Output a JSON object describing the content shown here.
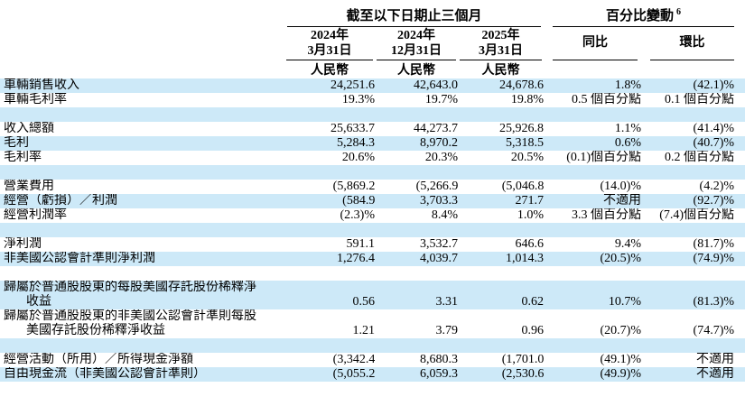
{
  "meta": {
    "colors": {
      "row_highlight": "#cde9f8",
      "rule_line": "#000000",
      "text": "#000000",
      "background": "#ffffff"
    }
  },
  "header": {
    "period_group": "截至以下日期止三個月",
    "change_group": "百分比變動",
    "change_group_superscript": "6",
    "date_columns": [
      {
        "year": "2024年",
        "date": "3月31日",
        "currency": "人民幣"
      },
      {
        "year": "2024年",
        "date": "12月31日",
        "currency": "人民幣"
      },
      {
        "year": "2025年",
        "date": "3月31日",
        "currency": "人民幣"
      }
    ],
    "change_columns": [
      {
        "label": "同比"
      },
      {
        "label": "環比"
      }
    ]
  },
  "rows": [
    {
      "type": "data",
      "shade": "blue",
      "label": "車輛銷售收入",
      "values": [
        "24,251.6",
        "42,643.0",
        "24,678.6",
        "1.8%",
        "(42.1)%"
      ]
    },
    {
      "type": "data",
      "shade": "white",
      "label": "車輛毛利率",
      "values": [
        "19.3%",
        "19.7%",
        "19.8%",
        "0.5 個百分點",
        "0.1 個百分點"
      ]
    },
    {
      "type": "spacer",
      "shade": "blue"
    },
    {
      "type": "data",
      "shade": "white",
      "label": "收入總額",
      "values": [
        "25,633.7",
        "44,273.7",
        "25,926.8",
        "1.1%",
        "(41.4)%"
      ]
    },
    {
      "type": "data",
      "shade": "blue",
      "label": "毛利",
      "values": [
        "5,284.3",
        "8,970.2",
        "5,318.5",
        "0.6%",
        "(40.7)%"
      ]
    },
    {
      "type": "data",
      "shade": "white",
      "label": "毛利率",
      "values": [
        "20.6%",
        "20.3%",
        "20.5%",
        "(0.1)個百分點",
        "0.2 個百分點"
      ]
    },
    {
      "type": "spacer",
      "shade": "blue"
    },
    {
      "type": "data",
      "shade": "white",
      "label": "營業費用",
      "values": [
        "(5,869.2)",
        "(5,266.9)",
        "(5,046.8)",
        "(14.0)%",
        "(4.2)%"
      ]
    },
    {
      "type": "data",
      "shade": "blue",
      "label": "經營（虧損）／利潤",
      "values": [
        "(584.9)",
        "3,703.3",
        "271.7",
        "不適用",
        "(92.7)%"
      ]
    },
    {
      "type": "data",
      "shade": "white",
      "label": "經營利潤率",
      "values": [
        "(2.3)%",
        "8.4%",
        "1.0%",
        "3.3 個百分點",
        "(7.4)個百分點"
      ]
    },
    {
      "type": "spacer",
      "shade": "blue"
    },
    {
      "type": "data",
      "shade": "white",
      "label": "淨利潤",
      "values": [
        "591.1",
        "3,532.7",
        "646.6",
        "9.4%",
        "(81.7)%"
      ]
    },
    {
      "type": "data",
      "shade": "blue",
      "label": "非美國公認會計準則淨利潤",
      "values": [
        "1,276.4",
        "4,039.7",
        "1,014.3",
        "(20.5)%",
        "(74.9)%"
      ]
    },
    {
      "type": "spacer",
      "shade": "white"
    },
    {
      "type": "data",
      "shade": "blue",
      "label": "歸屬於普通股股東的每股美國存託股份稀釋淨",
      "label_line2": "收益",
      "values": [
        "0.56",
        "3.31",
        "0.62",
        "10.7%",
        "(81.3)%"
      ]
    },
    {
      "type": "data",
      "shade": "white",
      "label": "歸屬於普通股股東的非美國公認會計準則每股",
      "label_line2": "美國存託股份稀釋淨收益",
      "values": [
        "1.21",
        "3.79",
        "0.96",
        "(20.7)%",
        "(74.7)%"
      ]
    },
    {
      "type": "spacer",
      "shade": "blue"
    },
    {
      "type": "data",
      "shade": "white",
      "label": "經營活動（所用）／所得現金淨額",
      "values": [
        "(3,342.4)",
        "8,680.3",
        "(1,701.0)",
        "(49.1)%",
        "不適用"
      ]
    },
    {
      "type": "data",
      "shade": "blue",
      "label": "自由現金流（非美國公認會計準則）",
      "values": [
        "(5,055.2)",
        "6,059.3",
        "(2,530.6)",
        "(49.9)%",
        "不適用"
      ]
    }
  ]
}
